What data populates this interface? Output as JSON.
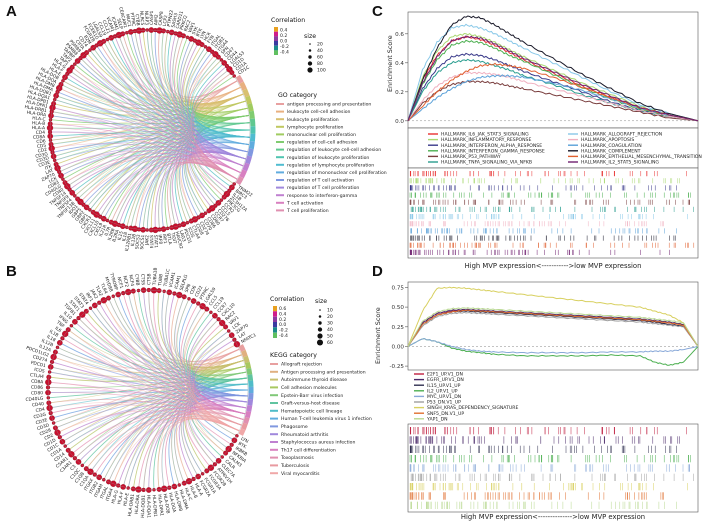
{
  "panels": {
    "A": {
      "letter": "A",
      "correlation_title": "Correlation",
      "correlation_ticks": [
        "0.4",
        "0.2",
        "0.0",
        "-0.2",
        "-0.4"
      ],
      "size_title": "size",
      "size_ticks": [
        "20",
        "40",
        "60",
        "80",
        "100"
      ],
      "category_title": "GO category",
      "categories": [
        {
          "label": "antigen processing and presentation",
          "color": "#e8a0a0"
        },
        {
          "label": "leukocyte cell-cell adhesion",
          "color": "#e8b080"
        },
        {
          "label": "leukocyte proliferation",
          "color": "#d8c070"
        },
        {
          "label": "lymphocyte proliferation",
          "color": "#c0c860"
        },
        {
          "label": "mononuclear cell proliferation",
          "color": "#a0cc60"
        },
        {
          "label": "regulation of cell-cell adhesion",
          "color": "#80cc70"
        },
        {
          "label": "regulation of leukocyte cell-cell adhesion",
          "color": "#60c890"
        },
        {
          "label": "regulation of leukocyte proliferation",
          "color": "#50c4b0"
        },
        {
          "label": "regulation of lymphocyte proliferation",
          "color": "#50bcd0"
        },
        {
          "label": "regulation of mononuclear cell proliferation",
          "color": "#60acde"
        },
        {
          "label": "regulation of T cell activation",
          "color": "#8098e0"
        },
        {
          "label": "regulation of T cell proliferation",
          "color": "#a088dc"
        },
        {
          "label": "response to interferon-gamma",
          "color": "#c080d0"
        },
        {
          "label": "T cell activation",
          "color": "#d880c0"
        },
        {
          "label": "T cell proliferation",
          "color": "#e090b0"
        }
      ],
      "genes": [
        "TRIM22",
        "BIRC3",
        "IL1B",
        "ZC3H12A",
        "PIK3CG",
        "CCR2",
        "CCL5",
        "CD276",
        "CCR7",
        "CD80",
        "CD86",
        "CD70",
        "CD274",
        "CD28",
        "CTLA4",
        "ICOS",
        "PDCD1",
        "LAG3",
        "HAVCR2",
        "TIGIT",
        "BTLA",
        "IRF1",
        "IRF8",
        "STAT1",
        "STAT4",
        "JAK2",
        "SOCS1",
        "SOCS3",
        "IL12B",
        "IL12RB1",
        "IL18",
        "IL15",
        "IL2RA",
        "IL2RB",
        "IL7R",
        "IL21R",
        "CXCL9",
        "CXCL10",
        "CXCL11",
        "CXCR3",
        "GBP1",
        "GBP2",
        "GBP5",
        "IDO1",
        "TNFSF13B",
        "TNFSF4",
        "TNFSF9",
        "TNFSF14",
        "CD40",
        "CD40LG",
        "CD83",
        "LCK",
        "ZAP70",
        "LAT",
        "ITK",
        "CD3E",
        "CD3D",
        "CD3G",
        "CD2",
        "CD5",
        "CD6",
        "CD8A",
        "CD4",
        "HLA-A",
        "HLA-B",
        "HLA-C",
        "HLA-DRA",
        "HLA-DRB1",
        "HLA-DPA1",
        "HLA-DPB1",
        "HLA-DQA1",
        "HLA-DQB1",
        "HLA-DMA",
        "HLA-DMB",
        "HLA-DOA",
        "HLA-DOB",
        "HLA-E",
        "HLA-F",
        "HLA-G",
        "TAP1",
        "TAP2",
        "TAPBP",
        "PSMB8",
        "PSMB9",
        "CIITA",
        "CD74",
        "B2M",
        "FCGR2B",
        "FCER1G",
        "LGALS9",
        "CCL19",
        "CCL21",
        "VCAM1",
        "ICAM1",
        "SELP",
        "CEACAM1",
        "MUC1",
        "PTPRC",
        "CYBB",
        "NLRC5",
        "NLRP3",
        "CASP1",
        "AIM2",
        "CASP8",
        "LCP2",
        "PTPN22",
        "SASH3",
        "CARD11",
        "PRKCQ",
        "RAC2",
        "VAV1",
        "SYK",
        "BTK",
        "LYN",
        "HCK",
        "FYN",
        "ITGAL",
        "ITGB2",
        "ITGA4",
        "SPN",
        "CD47",
        "CD44",
        "LGALS3",
        "CD1D",
        "CD1A",
        "CD1C"
      ]
    },
    "B": {
      "letter": "B",
      "correlation_title": "Correlation",
      "correlation_ticks": [
        "0.6",
        "0.4",
        "0.2",
        "0.0",
        "-0.2",
        "-0.4"
      ],
      "size_title": "size",
      "size_ticks": [
        "10",
        "20",
        "30",
        "40",
        "50",
        "60"
      ],
      "category_title": "KEGG category",
      "categories": [
        {
          "label": "Allograft rejection",
          "color": "#e8a0a0"
        },
        {
          "label": "Antigen processing and presentation",
          "color": "#e0b080"
        },
        {
          "label": "Autoimmune thyroid disease",
          "color": "#c8c070"
        },
        {
          "label": "Cell adhesion molecules",
          "color": "#a8c860"
        },
        {
          "label": "Epstein-Barr virus infection",
          "color": "#80c878"
        },
        {
          "label": "Graft-versus-host disease",
          "color": "#60c4a0"
        },
        {
          "label": "Hematopoietic cell lineage",
          "color": "#50bcc8"
        },
        {
          "label": "Human T-cell leukemia virus 1 infection",
          "color": "#60acde"
        },
        {
          "label": "Phagosome",
          "color": "#8098e0"
        },
        {
          "label": "Rheumatoid arthritis",
          "color": "#a088dc"
        },
        {
          "label": "Staphylococcus aureus infection",
          "color": "#c080d0"
        },
        {
          "label": "Th17 cell differentiation",
          "color": "#d880c0"
        },
        {
          "label": "Toxoplasmosis",
          "color": "#e090b0"
        },
        {
          "label": "Tuberculosis",
          "color": "#e89aa0"
        },
        {
          "label": "Viral myocarditis",
          "color": "#f0a8a8"
        }
      ],
      "genes": [
        "LYN",
        "BTK",
        "IKBKB",
        "NFKBIA",
        "CALM3",
        "CALR",
        "CLEC7A",
        "ATP6V1H",
        "FCGR2B",
        "FCGR3A",
        "FCGR1A",
        "FCGR2A",
        "HLA-A",
        "HLA-B",
        "HLA-C",
        "HLA-DMA",
        "HLA-DMB",
        "HLA-DOA",
        "HLA-DOB",
        "HLA-DPA1",
        "HLA-DPB1",
        "HLA-DQA1",
        "HLA-DQB1",
        "HLA-DRA",
        "HLA-DRB1",
        "HLA-E",
        "HLA-F",
        "HLA-G",
        "ITGA4",
        "ITGAL",
        "ITGAM",
        "ITGB2",
        "ITGAX",
        "C1QA",
        "C1QB",
        "C1QC",
        "C3",
        "C3AR1",
        "C5AR1",
        "CD14",
        "CD1A",
        "CD1C",
        "CD1D",
        "CD2",
        "CD28",
        "CD3D",
        "CD3E",
        "CD3G",
        "CD4",
        "CD40",
        "CD40LG",
        "CD80",
        "CD86",
        "CD8A",
        "CTLA4",
        "ICOS",
        "PDCD1",
        "CD274",
        "PDCD1LG2",
        "IL12A",
        "IL12B",
        "IL18",
        "IL1B",
        "IL6",
        "TNF",
        "IFNG",
        "IL10",
        "TGFB1",
        "STAT1",
        "STAT3",
        "STAT4",
        "IRF1",
        "JAK2",
        "TLR2",
        "TLR4",
        "MYD88",
        "TYROBP",
        "NCF1",
        "NCF2",
        "NCF4",
        "CYBB",
        "CTSS",
        "CTSB",
        "TUBA1B",
        "TUBB",
        "TUBA1C",
        "VCAM1",
        "ICAM1",
        "SELPLG",
        "SPN",
        "CD6",
        "CD22",
        "PTPRC",
        "LGALS9",
        "CCL5",
        "CCL19",
        "CCR7",
        "CXCL10",
        "RAC2",
        "VAV1",
        "LCK",
        "ZAP70",
        "LAT",
        "NFATC1"
      ]
    },
    "C": {
      "letter": "C",
      "ylabel": "Enrichment Score",
      "xcaption": "High MVP expression<----------->low MVP expression",
      "legend": [
        {
          "label": "HALLMARK_IL6_JAK_STAT3_SIGNALING",
          "color": "#e83030"
        },
        {
          "label": "HALLMARK_INFLAMMATORY_RESPONSE",
          "color": "#a8d870"
        },
        {
          "label": "HALLMARK_INTERFERON_ALPHA_RESPONSE",
          "color": "#3a3a8a"
        },
        {
          "label": "HALLMARK_INTERFERON_GAMMA_RESPONSE",
          "color": "#4caf50"
        },
        {
          "label": "HALLMARK_P53_PATHWAY",
          "color": "#7a3e3e"
        },
        {
          "label": "HALLMARK_TNFA_SIGNALING_VIA_NFKB",
          "color": "#2a9d8f"
        },
        {
          "label": "HALLMARK_ALLOGRAFT_REJECTION",
          "color": "#88c8e8"
        },
        {
          "label": "HALLMARK_APOPTOSIS",
          "color": "#f0b0c0"
        },
        {
          "label": "HALLMARK_COAGULATION",
          "color": "#5aa0d8"
        },
        {
          "label": "HALLMARK_COMPLEMENT",
          "color": "#1a1a2a"
        },
        {
          "label": "HALLMARK_EPITHELIAL_MESENCHYMAL_TRANSITION",
          "color": "#e06030"
        },
        {
          "label": "HALLMARK_IL2_STAT5_SIGNALING",
          "color": "#702070"
        }
      ]
    },
    "D": {
      "letter": "D",
      "ylabel": "Enrichment Score",
      "xcaption": "High MVP expression<-------------->low MVP expression",
      "legend": [
        {
          "label": "E2F1_UP.V1_DN",
          "color": "#c02040"
        },
        {
          "label": "EGFR_UP.V1_DN",
          "color": "#4a2a6a"
        },
        {
          "label": "IL15_UP.V1_UP",
          "color": "#303050"
        },
        {
          "label": "IL2_UP.V1_UP",
          "color": "#4caf50"
        },
        {
          "label": "MYC_UP.V1_DN",
          "color": "#88a8d8"
        },
        {
          "label": "P53_DN.V1_UP",
          "color": "#a0a0a0"
        },
        {
          "label": "SINGH_KRAS_DEPENDENCY_SIGNATURE",
          "color": "#d8d060"
        },
        {
          "label": "SNF5_DN.V1_UP",
          "color": "#e07030"
        },
        {
          "label": "YAP1_DN",
          "color": "#b8d890"
        }
      ]
    }
  },
  "chart_data": [
    {
      "type": "line",
      "panel": "C",
      "title": "",
      "xlabel": "High MVP expression<----------->low MVP expression",
      "ylabel": "Enrichment Score",
      "ylim": [
        -0.05,
        0.75
      ],
      "yticks": [
        0.0,
        0.2,
        0.4,
        0.6
      ],
      "x": [
        0,
        0.05,
        0.1,
        0.15,
        0.2,
        0.25,
        0.3,
        0.35,
        0.4,
        0.5,
        0.6,
        0.7,
        0.8,
        0.9,
        1.0
      ],
      "series": [
        {
          "name": "HALLMARK_IL6_JAK_STAT3_SIGNALING",
          "values": [
            0,
            0.28,
            0.45,
            0.55,
            0.58,
            0.56,
            0.52,
            0.47,
            0.42,
            0.33,
            0.24,
            0.16,
            0.09,
            0.04,
            0
          ]
        },
        {
          "name": "HALLMARK_INFLAMMATORY_RESPONSE",
          "values": [
            0,
            0.3,
            0.48,
            0.58,
            0.6,
            0.58,
            0.54,
            0.49,
            0.44,
            0.35,
            0.26,
            0.18,
            0.1,
            0.04,
            0
          ]
        },
        {
          "name": "HALLMARK_INTERFERON_ALPHA_RESPONSE",
          "values": [
            0,
            0.22,
            0.36,
            0.44,
            0.46,
            0.45,
            0.42,
            0.38,
            0.34,
            0.27,
            0.2,
            0.13,
            0.07,
            0.03,
            0
          ]
        },
        {
          "name": "HALLMARK_INTERFERON_GAMMA_RESPONSE",
          "values": [
            0,
            0.25,
            0.42,
            0.52,
            0.55,
            0.54,
            0.5,
            0.45,
            0.41,
            0.32,
            0.23,
            0.15,
            0.08,
            0.03,
            0
          ]
        },
        {
          "name": "HALLMARK_P53_PATHWAY",
          "values": [
            0,
            0.12,
            0.2,
            0.25,
            0.27,
            0.27,
            0.26,
            0.24,
            0.22,
            0.18,
            0.14,
            0.1,
            0.06,
            0.02,
            0
          ]
        },
        {
          "name": "HALLMARK_TNFA_SIGNALING_VIA_NFKB",
          "values": [
            0,
            0.2,
            0.33,
            0.4,
            0.42,
            0.41,
            0.38,
            0.35,
            0.31,
            0.25,
            0.18,
            0.12,
            0.07,
            0.03,
            0
          ]
        },
        {
          "name": "HALLMARK_ALLOGRAFT_REJECTION",
          "values": [
            0,
            0.35,
            0.54,
            0.64,
            0.66,
            0.64,
            0.6,
            0.55,
            0.5,
            0.4,
            0.3,
            0.2,
            0.11,
            0.05,
            0
          ]
        },
        {
          "name": "HALLMARK_APOPTOSIS",
          "values": [
            0,
            0.14,
            0.24,
            0.3,
            0.33,
            0.33,
            0.32,
            0.3,
            0.27,
            0.22,
            0.17,
            0.12,
            0.07,
            0.03,
            0
          ]
        },
        {
          "name": "HALLMARK_COAGULATION",
          "values": [
            0,
            0.08,
            0.16,
            0.22,
            0.27,
            0.3,
            0.31,
            0.31,
            0.3,
            0.26,
            0.21,
            0.15,
            0.09,
            0.04,
            0
          ]
        },
        {
          "name": "HALLMARK_COMPLEMENT",
          "values": [
            0,
            0.28,
            0.5,
            0.66,
            0.72,
            0.71,
            0.66,
            0.6,
            0.54,
            0.43,
            0.32,
            0.22,
            0.12,
            0.05,
            0
          ]
        },
        {
          "name": "HALLMARK_EPITHELIAL_MESENCHYMAL_TRANSITION",
          "values": [
            0,
            0.1,
            0.2,
            0.28,
            0.34,
            0.38,
            0.39,
            0.38,
            0.36,
            0.3,
            0.23,
            0.16,
            0.09,
            0.04,
            0
          ]
        },
        {
          "name": "HALLMARK_IL2_STAT5_SIGNALING",
          "values": [
            0,
            0.26,
            0.44,
            0.55,
            0.58,
            0.57,
            0.53,
            0.48,
            0.43,
            0.34,
            0.25,
            0.17,
            0.09,
            0.04,
            0
          ]
        }
      ]
    },
    {
      "type": "line",
      "panel": "D",
      "title": "",
      "xlabel": "High MVP expression<-------------->low MVP expression",
      "ylabel": "Enrichment Score",
      "ylim": [
        -0.3,
        0.82
      ],
      "yticks": [
        -0.25,
        0.0,
        0.25,
        0.5,
        0.75
      ],
      "x": [
        0,
        0.05,
        0.1,
        0.15,
        0.2,
        0.25,
        0.3,
        0.4,
        0.5,
        0.6,
        0.7,
        0.8,
        0.85,
        0.9,
        0.95,
        1.0
      ],
      "series": [
        {
          "name": "E2F1_UP.V1_DN",
          "values": [
            0,
            0.3,
            0.42,
            0.45,
            0.46,
            0.45,
            0.44,
            0.42,
            0.4,
            0.38,
            0.36,
            0.34,
            0.32,
            0.3,
            0.28,
            0
          ]
        },
        {
          "name": "EGFR_UP.V1_DN",
          "values": [
            0,
            0.3,
            0.42,
            0.46,
            0.47,
            0.46,
            0.45,
            0.43,
            0.41,
            0.39,
            0.37,
            0.35,
            0.33,
            0.31,
            0.28,
            0
          ]
        },
        {
          "name": "IL15_UP.V1_UP",
          "values": [
            0,
            0.28,
            0.4,
            0.44,
            0.45,
            0.44,
            0.43,
            0.41,
            0.39,
            0.37,
            0.35,
            0.33,
            0.31,
            0.28,
            0.26,
            0
          ]
        },
        {
          "name": "IL2_UP.V1_UP",
          "values": [
            0,
            0.1,
            0.06,
            -0.02,
            -0.06,
            -0.08,
            -0.1,
            -0.12,
            -0.12,
            -0.12,
            -0.11,
            -0.12,
            -0.2,
            -0.24,
            -0.2,
            0
          ]
        },
        {
          "name": "MYC_UP.V1_DN",
          "values": [
            0,
            0.1,
            0.06,
            0.0,
            -0.04,
            -0.06,
            -0.07,
            -0.08,
            -0.08,
            -0.08,
            -0.07,
            -0.07,
            -0.06,
            -0.06,
            -0.04,
            0
          ]
        },
        {
          "name": "P53_DN.V1_UP",
          "values": [
            0,
            0.26,
            0.38,
            0.42,
            0.43,
            0.42,
            0.41,
            0.39,
            0.37,
            0.35,
            0.33,
            0.31,
            0.29,
            0.27,
            0.25,
            0
          ]
        },
        {
          "name": "SINGH_KRAS_DEPENDENCY_SIGNATURE",
          "values": [
            0,
            0.45,
            0.74,
            0.75,
            0.74,
            0.72,
            0.7,
            0.66,
            0.62,
            0.58,
            0.54,
            0.5,
            0.45,
            0.4,
            0.3,
            0
          ]
        },
        {
          "name": "SNF5_DN.V1_UP",
          "values": [
            0,
            0.28,
            0.4,
            0.44,
            0.46,
            0.45,
            0.44,
            0.42,
            0.4,
            0.38,
            0.36,
            0.34,
            0.32,
            0.3,
            0.27,
            0
          ]
        },
        {
          "name": "YAP1_DN",
          "values": [
            0,
            0.32,
            0.44,
            0.48,
            0.49,
            0.48,
            0.47,
            0.45,
            0.43,
            0.41,
            0.39,
            0.37,
            0.35,
            0.33,
            0.3,
            0
          ]
        }
      ]
    }
  ]
}
